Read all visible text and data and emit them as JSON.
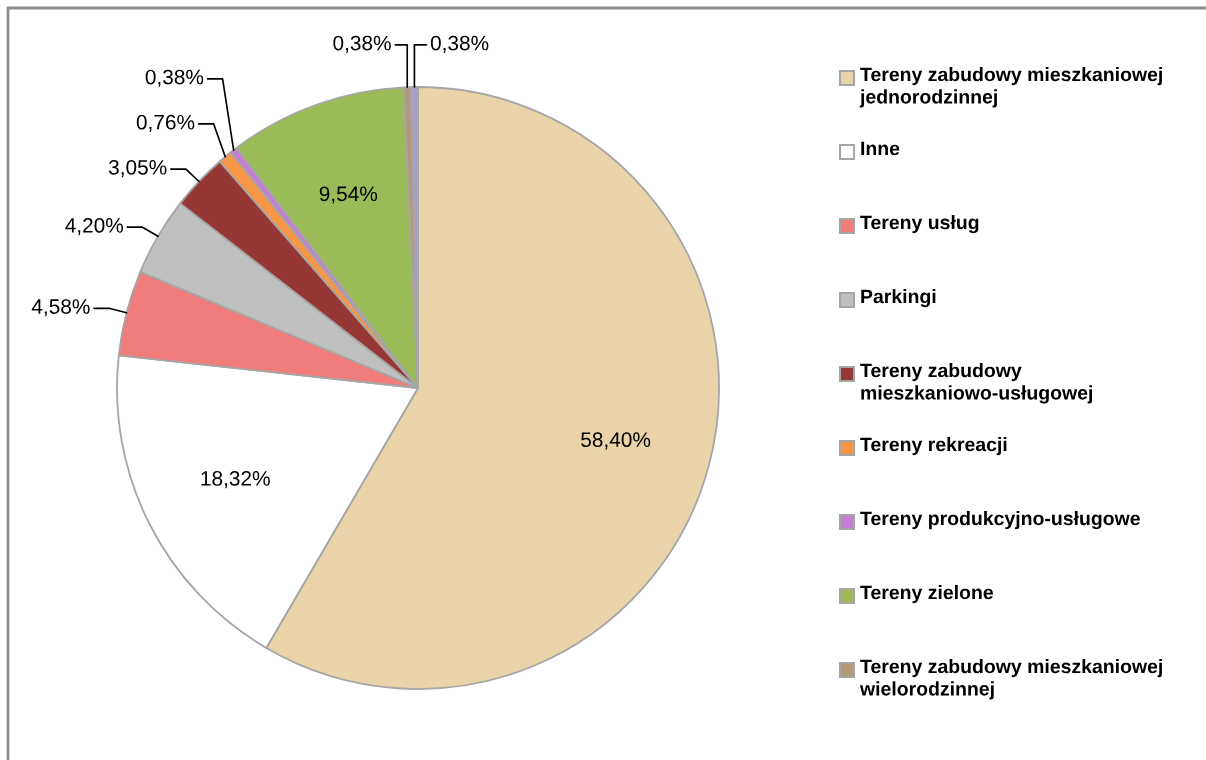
{
  "chart_data": {
    "type": "pie",
    "categories": [
      "Tereny zabudowy mieszkaniowej jednorodzinnej",
      "Inne",
      "Tereny usług",
      "Parkingi",
      "Tereny zabudowy mieszkaniowo-usługowej",
      "Tereny rekreacji",
      "Tereny produkcyjno-usługowe",
      "Tereny zielone",
      "Tereny zabudowy mieszkaniowej wielorodzinnej",
      null
    ],
    "values": [
      58.4,
      18.32,
      4.58,
      4.2,
      3.05,
      0.76,
      0.38,
      9.54,
      0.38,
      0.38
    ],
    "value_labels": [
      "58,40%",
      "18,32%",
      "4,58%",
      "4,20%",
      "3,05%",
      "0,76%",
      "0,38%",
      "9,54%",
      "0,38%",
      "0,38%"
    ],
    "colors": [
      "#e8d4a8",
      "#ffffff",
      "#f07c7c",
      "#c0c0c0",
      "#953735",
      "#f79646",
      "#c47ed4",
      "#9bbb59",
      "#b4987a",
      "#aa9ec4"
    ],
    "legend": "right"
  }
}
